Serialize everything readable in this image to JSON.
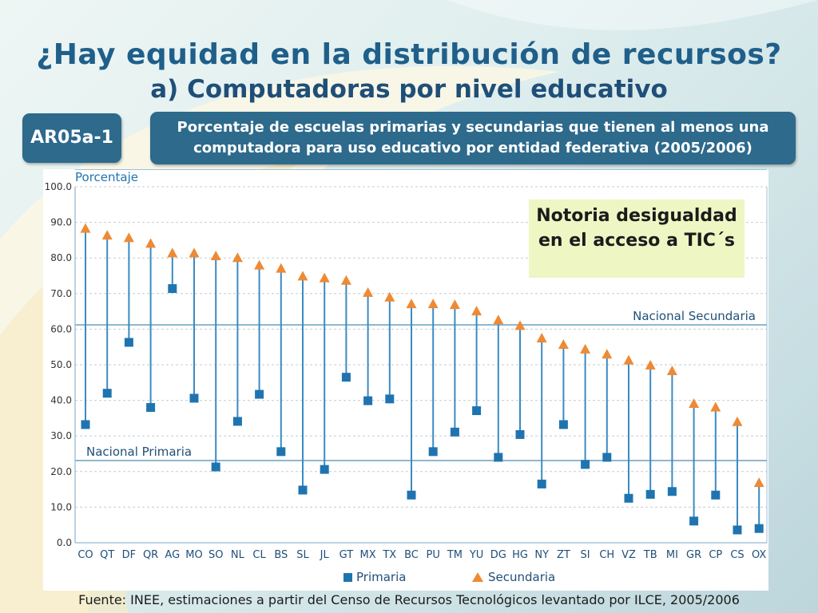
{
  "slide": {
    "title": "¿Hay equidad en la distribución de recursos?",
    "subtitle": "a) Computadoras por nivel educativo",
    "code": "AR05a-1",
    "description_line1": "Porcentaje de escuelas primarias y secundarias que tienen al menos una",
    "description_line2": "computadora para uso educativo por entidad federativa (2005/2006)",
    "callout": "Notoria desigualdad en el acceso a TIC´s",
    "source": "Fuente: INEE, estimaciones a partir del Censo de Recursos Tecnológicos levantado por ILCE, 2005/2006"
  },
  "colors": {
    "primaria": "#1f74b0",
    "secundaria": "#ee8a34",
    "stem": "#3b8bc2",
    "grid": "#c4cdd2",
    "reference": "#8fb7cf",
    "title": "#1f5f8a",
    "box": "#2d6a8c"
  },
  "chart_data": {
    "type": "scatter",
    "ylabel": "Porcentaje",
    "ylim": [
      0,
      100
    ],
    "yticks": [
      "0.0",
      "10.0",
      "20.0",
      "30.0",
      "40.0",
      "50.0",
      "60.0",
      "70.0",
      "80.0",
      "90.0",
      "100.0"
    ],
    "categories": [
      "CO",
      "QT",
      "DF",
      "QR",
      "AG",
      "MO",
      "SO",
      "NL",
      "CL",
      "BS",
      "SL",
      "JL",
      "GT",
      "MX",
      "TX",
      "BC",
      "PU",
      "TM",
      "YU",
      "DG",
      "HG",
      "NY",
      "ZT",
      "SI",
      "CH",
      "VZ",
      "TB",
      "MI",
      "GR",
      "CP",
      "CS",
      "OX"
    ],
    "series": [
      {
        "name": "Primaria",
        "marker": "square",
        "values": [
          33.2,
          42.0,
          56.3,
          38.0,
          71.4,
          40.6,
          21.3,
          34.1,
          41.7,
          25.6,
          14.8,
          20.6,
          46.5,
          39.9,
          40.4,
          13.4,
          25.6,
          31.1,
          37.1,
          24.0,
          30.4,
          16.5,
          33.2,
          22.0,
          24.0,
          12.5,
          13.6,
          14.4,
          6.1,
          13.4,
          3.6,
          4.0
        ]
      },
      {
        "name": "Secundaria",
        "marker": "triangle",
        "values": [
          88.2,
          86.3,
          85.6,
          84.0,
          81.3,
          81.3,
          80.5,
          80.0,
          77.9,
          77.0,
          74.8,
          74.3,
          73.6,
          70.2,
          68.9,
          67.0,
          67.0,
          66.8,
          65.0,
          62.5,
          60.9,
          57.4,
          55.6,
          54.3,
          52.9,
          51.2,
          49.8,
          48.2,
          39.0,
          38.0,
          33.9,
          16.8
        ]
      }
    ],
    "reference_lines": [
      {
        "label": "Nacional Secundaria",
        "value": 61.2
      },
      {
        "label": "Nacional Primaria",
        "value": 23.1
      }
    ],
    "legend": {
      "position": "bottom",
      "entries": [
        "Primaria",
        "Secundaria"
      ]
    }
  }
}
